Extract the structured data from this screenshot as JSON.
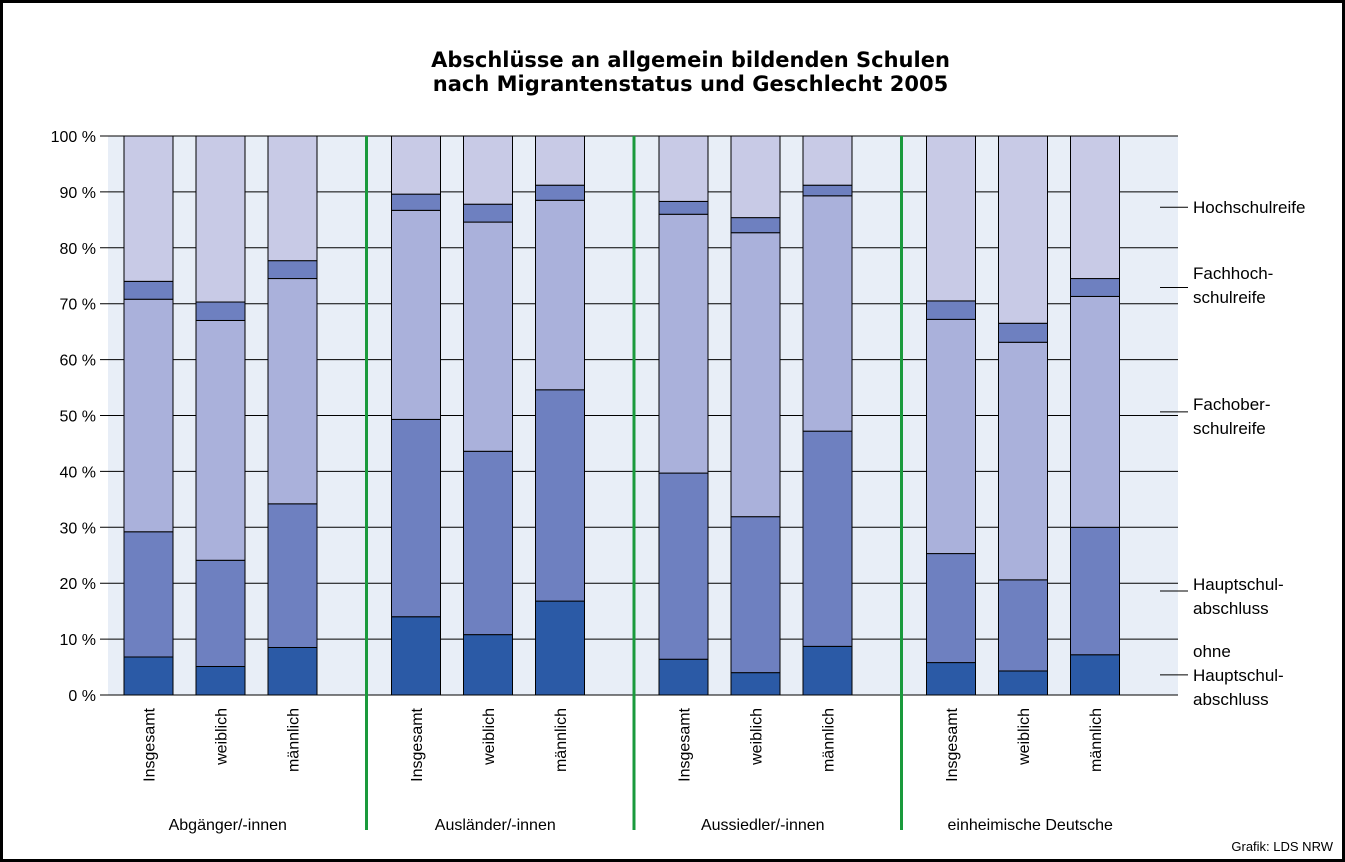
{
  "chart_data": {
    "type": "bar",
    "stacked": true,
    "title_lines": [
      "Abschlüsse an allgemein bildenden Schulen",
      "nach Migrantenstatus und Geschlecht 2005"
    ],
    "ylim": [
      0,
      100
    ],
    "yticks": [
      "0 %",
      "10 %",
      "20 %",
      "30 %",
      "40 %",
      "50 %",
      "60 %",
      "70 %",
      "80 %",
      "90 %",
      "100 %"
    ],
    "grid": true,
    "groups": [
      {
        "label": "Abgänger/-innen",
        "categories": [
          "Insgesamt",
          "weiblich",
          "männlich"
        ]
      },
      {
        "label": "Ausländer/-innen",
        "categories": [
          "Insgesamt",
          "weiblich",
          "männlich"
        ]
      },
      {
        "label": "Aussiedler/-innen",
        "categories": [
          "Insgesamt",
          "weiblich",
          "männlich"
        ]
      },
      {
        "label": "einheimische Deutsche",
        "categories": [
          "Insgesamt",
          "weiblich",
          "männlich"
        ]
      }
    ],
    "series": [
      {
        "name": "ohne Hauptschul-abschluss",
        "label_lines": [
          "ohne",
          "Hauptschul-",
          "abschluss"
        ],
        "color": "#2b5aa6",
        "values": [
          6.8,
          5.1,
          8.5,
          14.0,
          10.8,
          16.8,
          6.4,
          4.0,
          8.7,
          5.8,
          4.3,
          7.2
        ]
      },
      {
        "name": "Hauptschul-abschluss",
        "label_lines": [
          "Hauptschul-",
          "abschluss"
        ],
        "color": "#6e80c0",
        "values": [
          22.4,
          19.0,
          25.7,
          35.3,
          32.8,
          37.8,
          33.3,
          27.9,
          38.5,
          19.5,
          16.3,
          22.8
        ]
      },
      {
        "name": "Fachober-schulreife",
        "label_lines": [
          "Fachober-",
          "schulreife"
        ],
        "color": "#aab1db",
        "values": [
          41.6,
          42.9,
          40.3,
          37.4,
          41.0,
          33.9,
          46.3,
          50.8,
          42.1,
          41.9,
          42.5,
          41.3
        ]
      },
      {
        "name": "Fachhoch-schulreife",
        "label_lines": [
          "Fachhoch-",
          "schulreife"
        ],
        "color": "#6e80c0",
        "values": [
          3.2,
          3.3,
          3.2,
          2.9,
          3.2,
          2.7,
          2.3,
          2.7,
          1.9,
          3.3,
          3.4,
          3.2
        ]
      },
      {
        "name": "Hochschulreife",
        "label_lines": [
          "Hochschulreife"
        ],
        "color": "#c8cae6",
        "values": [
          26.0,
          29.7,
          22.3,
          10.4,
          12.2,
          8.8,
          11.7,
          14.6,
          8.8,
          29.5,
          33.5,
          25.5
        ]
      }
    ],
    "separator_color": "#1a9a3c",
    "plot_background": "#e8eef7"
  },
  "credit": "Grafik: LDS NRW"
}
